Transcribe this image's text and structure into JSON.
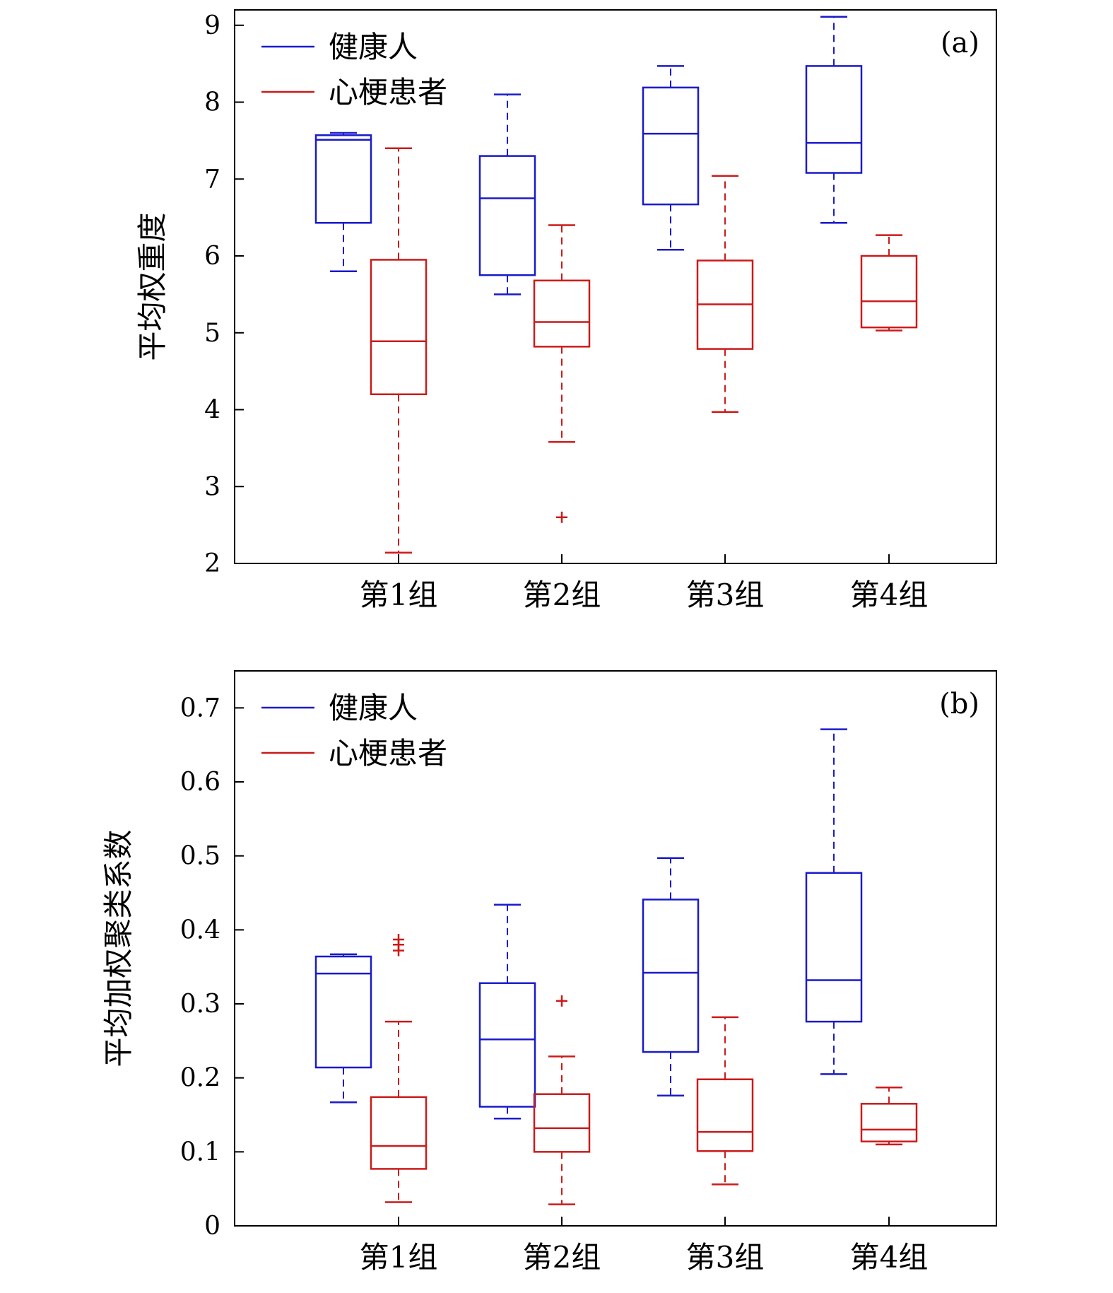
{
  "colors": {
    "healthy": "#1a1acc",
    "patient": "#cc1a1a",
    "axis": "#000000"
  },
  "chart_data": [
    {
      "type": "box",
      "panel_label": "(a)",
      "ylabel": "平均权重度",
      "ylim": [
        2,
        9.2
      ],
      "yticks": [
        2,
        3,
        4,
        5,
        6,
        7,
        8,
        9
      ],
      "ytick_labels": [
        "2",
        "3",
        "4",
        "5",
        "6",
        "7",
        "8",
        "9"
      ],
      "categories": [
        "第1组",
        "第2组",
        "第3组",
        "第4组"
      ],
      "legend": {
        "position": "top-left",
        "entries": [
          "健康人",
          "心梗患者"
        ]
      },
      "series": [
        {
          "name": "健康人",
          "color_key": "healthy",
          "boxes": [
            {
              "whisker_low": 5.8,
              "q1": 6.43,
              "median": 7.51,
              "q3": 7.57,
              "whisker_high": 7.6,
              "outliers": []
            },
            {
              "whisker_low": 5.5,
              "q1": 5.75,
              "median": 6.75,
              "q3": 7.3,
              "whisker_high": 8.1,
              "outliers": []
            },
            {
              "whisker_low": 6.08,
              "q1": 6.67,
              "median": 7.59,
              "q3": 8.19,
              "whisker_high": 8.47,
              "outliers": []
            },
            {
              "whisker_low": 6.43,
              "q1": 7.08,
              "median": 7.47,
              "q3": 8.47,
              "whisker_high": 9.11,
              "outliers": []
            }
          ]
        },
        {
          "name": "心梗患者",
          "color_key": "patient",
          "boxes": [
            {
              "whisker_low": 2.14,
              "q1": 4.2,
              "median": 4.89,
              "q3": 5.95,
              "whisker_high": 7.4,
              "outliers": []
            },
            {
              "whisker_low": 3.58,
              "q1": 4.82,
              "median": 5.14,
              "q3": 5.68,
              "whisker_high": 6.4,
              "outliers": [
                2.6
              ]
            },
            {
              "whisker_low": 3.97,
              "q1": 4.79,
              "median": 5.37,
              "q3": 5.94,
              "whisker_high": 7.04,
              "outliers": []
            },
            {
              "whisker_low": 5.03,
              "q1": 5.07,
              "median": 5.41,
              "q3": 6.0,
              "whisker_high": 6.27,
              "outliers": []
            }
          ]
        }
      ]
    },
    {
      "type": "box",
      "panel_label": "(b)",
      "ylabel": "平均加权聚类系数",
      "ylim": [
        0,
        0.75
      ],
      "yticks": [
        0,
        0.1,
        0.2,
        0.3,
        0.4,
        0.5,
        0.6,
        0.7
      ],
      "ytick_labels": [
        "0",
        "0.1",
        "0.2",
        "0.3",
        "0.4",
        "0.5",
        "0.6",
        "0.7"
      ],
      "categories": [
        "第1组",
        "第2组",
        "第3组",
        "第4组"
      ],
      "legend": {
        "position": "top-left",
        "entries": [
          "健康人",
          "心梗患者"
        ]
      },
      "series": [
        {
          "name": "健康人",
          "color_key": "healthy",
          "boxes": [
            {
              "whisker_low": 0.167,
              "q1": 0.214,
              "median": 0.341,
              "q3": 0.364,
              "whisker_high": 0.367,
              "outliers": []
            },
            {
              "whisker_low": 0.145,
              "q1": 0.161,
              "median": 0.252,
              "q3": 0.328,
              "whisker_high": 0.434,
              "outliers": []
            },
            {
              "whisker_low": 0.176,
              "q1": 0.235,
              "median": 0.342,
              "q3": 0.441,
              "whisker_high": 0.497,
              "outliers": []
            },
            {
              "whisker_low": 0.205,
              "q1": 0.276,
              "median": 0.332,
              "q3": 0.477,
              "whisker_high": 0.671,
              "outliers": []
            }
          ]
        },
        {
          "name": "心梗患者",
          "color_key": "patient",
          "boxes": [
            {
              "whisker_low": 0.032,
              "q1": 0.077,
              "median": 0.108,
              "q3": 0.174,
              "whisker_high": 0.276,
              "outliers": [
                0.372,
                0.38,
                0.387
              ]
            },
            {
              "whisker_low": 0.029,
              "q1": 0.1,
              "median": 0.132,
              "q3": 0.178,
              "whisker_high": 0.229,
              "outliers": [
                0.304
              ]
            },
            {
              "whisker_low": 0.056,
              "q1": 0.101,
              "median": 0.127,
              "q3": 0.198,
              "whisker_high": 0.282,
              "outliers": []
            },
            {
              "whisker_low": 0.11,
              "q1": 0.114,
              "median": 0.13,
              "q3": 0.165,
              "whisker_high": 0.187,
              "outliers": []
            }
          ]
        }
      ]
    }
  ]
}
